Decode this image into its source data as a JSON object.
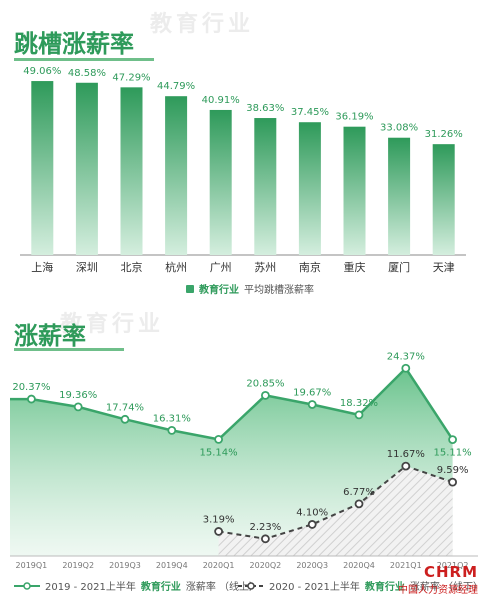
{
  "watermark": "教育行业",
  "chart_data": [
    {
      "type": "bar",
      "title": "跳槽涨薪率",
      "categories": [
        "上海",
        "深圳",
        "北京",
        "杭州",
        "广州",
        "苏州",
        "南京",
        "重庆",
        "厦门",
        "天津"
      ],
      "values": [
        49.06,
        48.58,
        47.29,
        44.79,
        40.91,
        38.63,
        37.45,
        36.19,
        33.08,
        31.26
      ],
      "value_labels": [
        "49.06%",
        "48.58%",
        "47.29%",
        "44.79%",
        "40.91%",
        "38.63%",
        "37.45%",
        "36.19%",
        "33.08%",
        "31.26%"
      ],
      "ylim": [
        0,
        55
      ],
      "legend": {
        "series_name": "教育行业",
        "suffix": "平均跳槽涨薪率"
      },
      "colors": {
        "top": "#2e9a5a",
        "bottom": "#d4eede"
      }
    },
    {
      "type": "line",
      "title": "涨薪率",
      "categories": [
        "2019Q1",
        "2019Q2",
        "2019Q3",
        "2019Q4",
        "2020Q1",
        "2020Q2",
        "2020Q3",
        "2020Q4",
        "2021Q1",
        "2021Q2"
      ],
      "series": [
        {
          "name": "2019 - 2021上半年 教育行业 涨薪率（线上）",
          "values": [
            20.37,
            19.36,
            17.74,
            16.31,
            15.14,
            20.85,
            19.67,
            18.32,
            24.37,
            15.11
          ],
          "labels": [
            "20.37%",
            "19.36%",
            "17.74%",
            "16.31%",
            "15.14%",
            "20.85%",
            "19.67%",
            "18.32%",
            "24.37%",
            "15.11%"
          ],
          "color": "#3aa56a"
        },
        {
          "name": "2020 - 2021上半年 教育行业 涨薪率（线下）",
          "values": [
            null,
            null,
            null,
            null,
            3.19,
            2.23,
            4.1,
            6.77,
            11.67,
            9.59
          ],
          "labels": [
            "",
            "",
            "",
            "",
            "3.19%",
            "2.23%",
            "4.10%",
            "6.77%",
            "11.67%",
            "9.59%"
          ],
          "color": "#444444"
        }
      ],
      "ylim": [
        0,
        27
      ],
      "legend": {
        "a_prefix": "2019 - 2021上半年",
        "a_green": "教育行业",
        "a_suffix": "涨薪率 （线上）",
        "b_prefix": "2020 - 2021上半年",
        "b_green": "教育行业",
        "b_suffix": "涨薪率 （线下）"
      }
    }
  ],
  "brand": {
    "logo": "CHRM",
    "subtitle": "中国人力资源经理"
  }
}
